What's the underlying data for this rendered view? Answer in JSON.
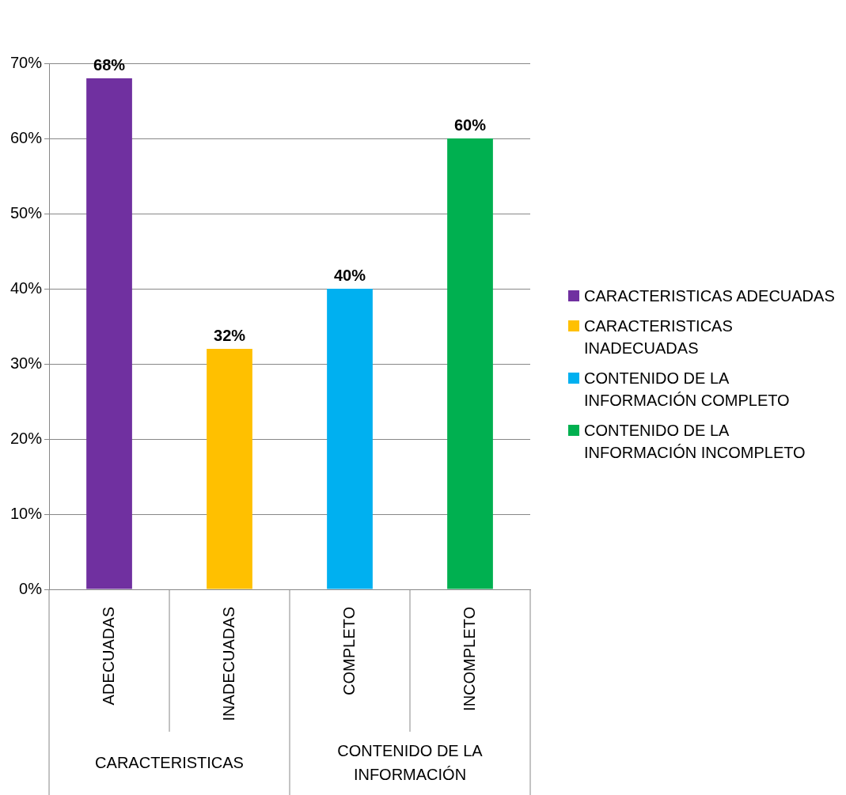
{
  "chart_data": {
    "type": "bar",
    "categories": [
      "ADECUADAS",
      "INADECUADAS",
      "COMPLETO",
      "INCOMPLETO"
    ],
    "series": [
      {
        "name": "CARACTERISTICAS ADECUADAS",
        "color": "#7030a0",
        "values": [
          68,
          null,
          null,
          null
        ],
        "value_labels": [
          "68%",
          null,
          null,
          null
        ]
      },
      {
        "name": "CARACTERISTICAS INADECUADAS",
        "color": "#ffc000",
        "values": [
          null,
          32,
          null,
          null
        ],
        "value_labels": [
          null,
          "32%",
          null,
          null
        ]
      },
      {
        "name": "CONTENIDO DE LA INFORMACIÓN COMPLETO",
        "color": "#00b0f0",
        "values": [
          null,
          null,
          40,
          null
        ],
        "value_labels": [
          null,
          null,
          "40%",
          null
        ]
      },
      {
        "name": "CONTENIDO DE LA INFORMACIÓN INCOMPLETO",
        "color": "#00b050",
        "values": [
          null,
          null,
          null,
          60
        ],
        "value_labels": [
          null,
          null,
          null,
          "60%"
        ]
      }
    ],
    "annotations": [
      "CARACTERISTICAS",
      "CONTENIDO DE LA INFORMACIÓN"
    ],
    "ylim": [
      0,
      70
    ],
    "yticks": [
      {
        "value": 0,
        "label": "0%"
      },
      {
        "value": 10,
        "label": "10%"
      },
      {
        "value": 20,
        "label": "20%"
      },
      {
        "value": 30,
        "label": "30%"
      },
      {
        "value": 40,
        "label": "40%"
      },
      {
        "value": 50,
        "label": "50%"
      },
      {
        "value": 60,
        "label": "60%"
      },
      {
        "value": 70,
        "label": "70%"
      }
    ],
    "grid": true,
    "legend": "right"
  }
}
